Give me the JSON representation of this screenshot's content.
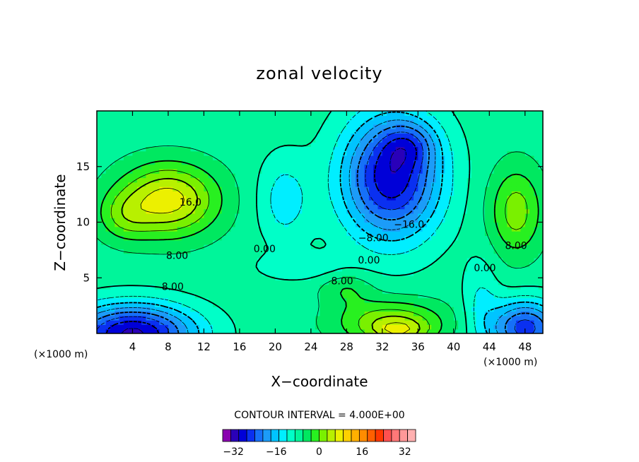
{
  "chart_data": {
    "type": "heatmap",
    "title": "zonal velocity",
    "xlabel": "X−coordinate",
    "ylabel": "Z−coordinate",
    "x_unit": "(×1000 m)",
    "y_unit": "(×1000 m)",
    "xlim": [
      0,
      50
    ],
    "ylim": [
      0,
      20
    ],
    "x_ticks": [
      4,
      8,
      12,
      16,
      20,
      24,
      28,
      32,
      36,
      40,
      44,
      48
    ],
    "y_ticks": [
      5,
      10,
      15
    ],
    "x_tick_labels": [
      "4",
      "8",
      "12",
      "16",
      "20",
      "24",
      "28",
      "32",
      "36",
      "40",
      "44",
      "48"
    ],
    "y_tick_labels": [
      "5",
      "10",
      "15"
    ],
    "contour_interval_text": "CONTOUR INTERVAL = 4.000E+00",
    "contour_interval": 4,
    "contour_labels": [
      {
        "text": "16.0",
        "x": 10.5,
        "y": 11.5
      },
      {
        "text": "8.00",
        "x": 9.0,
        "y": 6.7
      },
      {
        "text": "8.00",
        "x": 8.5,
        "y": 3.9
      },
      {
        "text": "0.00",
        "x": 18.8,
        "y": 7.3
      },
      {
        "text": "−16.0",
        "x": 35.0,
        "y": 9.5
      },
      {
        "text": "−8.00",
        "x": 31.0,
        "y": 8.3
      },
      {
        "text": "0.00",
        "x": 30.5,
        "y": 6.3
      },
      {
        "text": "8.00",
        "x": 27.5,
        "y": 4.4
      },
      {
        "text": "0.00",
        "x": 43.5,
        "y": 5.6
      },
      {
        "text": "8.00",
        "x": 47.0,
        "y": 7.6
      }
    ],
    "features": [
      {
        "x": 8,
        "z": 12,
        "strength": 20,
        "sx": 5.5,
        "sz": 3.2
      },
      {
        "x": 3,
        "z": 10.5,
        "strength": 7,
        "sx": 3,
        "sz": 2.2
      },
      {
        "x": 33,
        "z": 14,
        "strength": -29,
        "sx": 5.5,
        "sz": 5.5
      },
      {
        "x": 35,
        "z": 17,
        "strength": -9,
        "sx": 3,
        "sz": 2
      },
      {
        "x": 4,
        "z": 0,
        "strength": -31,
        "sx": 7,
        "sz": 2.6
      },
      {
        "x": 48,
        "z": 0.5,
        "strength": -24,
        "sx": 4,
        "sz": 2.5
      },
      {
        "x": 47,
        "z": 11,
        "strength": 12,
        "sx": 3,
        "sz": 4
      },
      {
        "x": 33,
        "z": 1,
        "strength": 14,
        "sx": 6,
        "sz": 2
      },
      {
        "x": 34,
        "z": 0.2,
        "strength": 8,
        "sx": 3,
        "sz": 1
      },
      {
        "x": 28,
        "z": 4,
        "strength": 6,
        "sx": 3,
        "sz": 1.5
      },
      {
        "x": 21,
        "z": 12,
        "strength": -8,
        "sx": 3,
        "sz": 4
      },
      {
        "x": 23,
        "z": 6,
        "strength": -5,
        "sx": 5,
        "sz": 1.2
      },
      {
        "x": 43,
        "z": 3,
        "strength": -6,
        "sx": 2,
        "sz": 4
      }
    ],
    "base_value": 2,
    "colorbar": {
      "min": -36,
      "max": 36,
      "step": 4,
      "tick_values": [
        -32,
        -16,
        0,
        16,
        32
      ],
      "tick_labels": [
        "−32",
        "−16",
        "0",
        "16",
        "32"
      ],
      "colors": [
        "#8a00b0",
        "#2a00b8",
        "#0000d8",
        "#0a30f0",
        "#1670f8",
        "#1c9cf8",
        "#00c4ff",
        "#00eeff",
        "#00ffc8",
        "#00f59a",
        "#00e860",
        "#28f020",
        "#7af000",
        "#b8f000",
        "#ecf000",
        "#ffd000",
        "#ffb000",
        "#ff8c00",
        "#ff6000",
        "#ff3800",
        "#ff5050",
        "#ff7878",
        "#ff9898",
        "#ffb0b0"
      ]
    }
  }
}
